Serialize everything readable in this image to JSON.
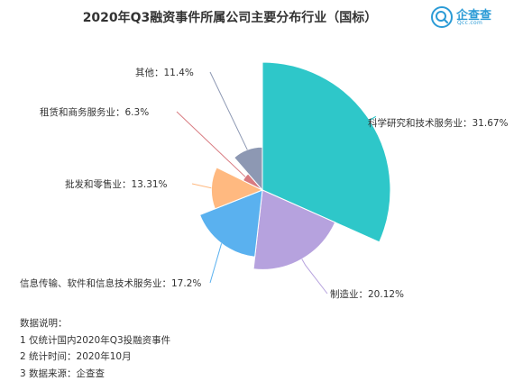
{
  "title": "2020年Q3融资事件所属公司主要分布行业（国标）",
  "logo": {
    "name": "企查查",
    "sub": "Qcc.com",
    "icon": "magnifier-logo-icon",
    "color": "#2b9bd6"
  },
  "chart_data": {
    "type": "pie",
    "variant": "rose",
    "slices": [
      {
        "label": "科学研究和技术服务业：31.67%",
        "value": 31.67,
        "color": "#2ec7c9"
      },
      {
        "label": "制造业：20.12%",
        "value": 20.12,
        "color": "#b6a2de"
      },
      {
        "label": "信息传输、软件和信息技术服务业：17.2%",
        "value": 17.2,
        "color": "#5ab1ef"
      },
      {
        "label": "批发和零售业：13.31%",
        "value": 13.31,
        "color": "#ffb980"
      },
      {
        "label": "租赁和商务服务业：6.3%",
        "value": 6.3,
        "color": "#d87a80"
      },
      {
        "label": "其他：11.4%",
        "value": 11.4,
        "color": "#8d98b3"
      }
    ]
  },
  "notes": {
    "heading": "数据说明：",
    "items": [
      "1 仅统计国内2020年Q3投融资事件",
      "2 统计时间：2020年10月",
      "3 数据来源：企查查"
    ]
  }
}
